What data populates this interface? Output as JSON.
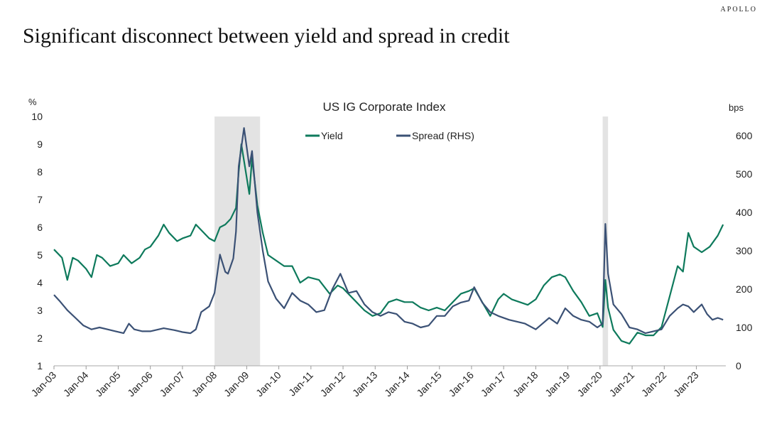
{
  "header": {
    "brand": "APOLLO",
    "headline": "Significant disconnect between yield and spread in credit"
  },
  "chart_data": {
    "type": "line",
    "title": "US IG Corporate Index",
    "left_unit": "%",
    "right_unit": "bps",
    "y_left_range": [
      1,
      10
    ],
    "y_left_ticks": [
      "1",
      "2",
      "3",
      "4",
      "5",
      "6",
      "7",
      "8",
      "9",
      "10"
    ],
    "y_right_range": [
      0,
      650
    ],
    "y_right_ticks": [
      "0",
      "100",
      "200",
      "300",
      "400",
      "500",
      "600"
    ],
    "x_range": [
      "2003-01",
      "2023-12"
    ],
    "x_ticks": [
      "Jan-03",
      "Jan-04",
      "Jan-05",
      "Jan-06",
      "Jan-07",
      "Jan-08",
      "Jan-09",
      "Jan-10",
      "Jan-11",
      "Jan-12",
      "Jan-13",
      "Jan-14",
      "Jan-15",
      "Jan-16",
      "Jan-17",
      "Jan-18",
      "Jan-19",
      "Jan-20",
      "Jan-21",
      "Jan-22",
      "Jan-23"
    ],
    "grid": false,
    "legend_position": "top-center",
    "shaded_periods": [
      [
        "2008-01",
        "2009-06"
      ],
      [
        "2020-02",
        "2020-04"
      ]
    ],
    "series": [
      {
        "name": "Yield",
        "axis": "left",
        "color": "#0e7a5c",
        "points": [
          [
            "2003-01",
            5.2
          ],
          [
            "2003-04",
            4.9
          ],
          [
            "2003-06",
            4.1
          ],
          [
            "2003-08",
            4.9
          ],
          [
            "2003-10",
            4.8
          ],
          [
            "2004-01",
            4.5
          ],
          [
            "2004-03",
            4.2
          ],
          [
            "2004-05",
            5.0
          ],
          [
            "2004-07",
            4.9
          ],
          [
            "2004-10",
            4.6
          ],
          [
            "2005-01",
            4.7
          ],
          [
            "2005-03",
            5.0
          ],
          [
            "2005-06",
            4.7
          ],
          [
            "2005-09",
            4.9
          ],
          [
            "2005-11",
            5.2
          ],
          [
            "2006-01",
            5.3
          ],
          [
            "2006-04",
            5.7
          ],
          [
            "2006-06",
            6.1
          ],
          [
            "2006-08",
            5.8
          ],
          [
            "2006-11",
            5.5
          ],
          [
            "2007-01",
            5.6
          ],
          [
            "2007-04",
            5.7
          ],
          [
            "2007-06",
            6.1
          ],
          [
            "2007-08",
            5.9
          ],
          [
            "2007-11",
            5.6
          ],
          [
            "2008-01",
            5.5
          ],
          [
            "2008-03",
            6.0
          ],
          [
            "2008-05",
            6.1
          ],
          [
            "2008-07",
            6.3
          ],
          [
            "2008-09",
            6.7
          ],
          [
            "2008-10",
            8.0
          ],
          [
            "2008-11",
            9.0
          ],
          [
            "2008-12",
            8.4
          ],
          [
            "2009-02",
            7.2
          ],
          [
            "2009-03",
            8.5
          ],
          [
            "2009-05",
            6.8
          ],
          [
            "2009-07",
            5.8
          ],
          [
            "2009-09",
            5.0
          ],
          [
            "2009-12",
            4.8
          ],
          [
            "2010-03",
            4.6
          ],
          [
            "2010-06",
            4.6
          ],
          [
            "2010-09",
            4.0
          ],
          [
            "2010-12",
            4.2
          ],
          [
            "2011-04",
            4.1
          ],
          [
            "2011-08",
            3.6
          ],
          [
            "2011-11",
            3.9
          ],
          [
            "2012-01",
            3.8
          ],
          [
            "2012-06",
            3.3
          ],
          [
            "2012-09",
            3.0
          ],
          [
            "2012-12",
            2.8
          ],
          [
            "2013-03",
            2.9
          ],
          [
            "2013-06",
            3.3
          ],
          [
            "2013-09",
            3.4
          ],
          [
            "2013-12",
            3.3
          ],
          [
            "2014-03",
            3.3
          ],
          [
            "2014-06",
            3.1
          ],
          [
            "2014-09",
            3.0
          ],
          [
            "2014-12",
            3.1
          ],
          [
            "2015-03",
            3.0
          ],
          [
            "2015-06",
            3.3
          ],
          [
            "2015-09",
            3.6
          ],
          [
            "2015-12",
            3.7
          ],
          [
            "2016-02",
            3.8
          ],
          [
            "2016-05",
            3.3
          ],
          [
            "2016-08",
            2.8
          ],
          [
            "2016-11",
            3.4
          ],
          [
            "2017-01",
            3.6
          ],
          [
            "2017-04",
            3.4
          ],
          [
            "2017-07",
            3.3
          ],
          [
            "2017-10",
            3.2
          ],
          [
            "2018-01",
            3.4
          ],
          [
            "2018-04",
            3.9
          ],
          [
            "2018-07",
            4.2
          ],
          [
            "2018-10",
            4.3
          ],
          [
            "2018-12",
            4.2
          ],
          [
            "2019-03",
            3.7
          ],
          [
            "2019-06",
            3.3
          ],
          [
            "2019-09",
            2.8
          ],
          [
            "2019-12",
            2.9
          ],
          [
            "2020-02",
            2.4
          ],
          [
            "2020-03",
            4.1
          ],
          [
            "2020-04",
            3.1
          ],
          [
            "2020-06",
            2.3
          ],
          [
            "2020-09",
            1.9
          ],
          [
            "2020-12",
            1.8
          ],
          [
            "2021-03",
            2.2
          ],
          [
            "2021-06",
            2.1
          ],
          [
            "2021-09",
            2.1
          ],
          [
            "2021-12",
            2.4
          ],
          [
            "2022-03",
            3.5
          ],
          [
            "2022-06",
            4.6
          ],
          [
            "2022-08",
            4.4
          ],
          [
            "2022-10",
            5.8
          ],
          [
            "2022-12",
            5.3
          ],
          [
            "2023-03",
            5.1
          ],
          [
            "2023-06",
            5.3
          ],
          [
            "2023-09",
            5.7
          ],
          [
            "2023-11",
            6.1
          ]
        ]
      },
      {
        "name": "Spread (RHS)",
        "axis": "right",
        "color": "#3b5175",
        "points": [
          [
            "2003-01",
            185
          ],
          [
            "2003-03",
            170
          ],
          [
            "2003-06",
            145
          ],
          [
            "2003-09",
            125
          ],
          [
            "2003-12",
            105
          ],
          [
            "2004-03",
            95
          ],
          [
            "2004-06",
            100
          ],
          [
            "2004-09",
            95
          ],
          [
            "2004-12",
            90
          ],
          [
            "2005-03",
            85
          ],
          [
            "2005-05",
            110
          ],
          [
            "2005-07",
            95
          ],
          [
            "2005-10",
            90
          ],
          [
            "2006-01",
            90
          ],
          [
            "2006-06",
            98
          ],
          [
            "2006-10",
            93
          ],
          [
            "2007-01",
            88
          ],
          [
            "2007-04",
            85
          ],
          [
            "2007-06",
            95
          ],
          [
            "2007-08",
            140
          ],
          [
            "2007-11",
            155
          ],
          [
            "2008-01",
            190
          ],
          [
            "2008-03",
            290
          ],
          [
            "2008-05",
            245
          ],
          [
            "2008-06",
            240
          ],
          [
            "2008-08",
            280
          ],
          [
            "2008-09",
            350
          ],
          [
            "2008-10",
            520
          ],
          [
            "2008-12",
            620
          ],
          [
            "2009-02",
            520
          ],
          [
            "2009-03",
            560
          ],
          [
            "2009-05",
            400
          ],
          [
            "2009-07",
            300
          ],
          [
            "2009-09",
            220
          ],
          [
            "2009-12",
            175
          ],
          [
            "2010-03",
            150
          ],
          [
            "2010-06",
            190
          ],
          [
            "2010-09",
            170
          ],
          [
            "2010-12",
            160
          ],
          [
            "2011-03",
            140
          ],
          [
            "2011-06",
            145
          ],
          [
            "2011-09",
            200
          ],
          [
            "2011-12",
            240
          ],
          [
            "2012-03",
            190
          ],
          [
            "2012-06",
            195
          ],
          [
            "2012-09",
            160
          ],
          [
            "2012-12",
            140
          ],
          [
            "2013-03",
            130
          ],
          [
            "2013-06",
            140
          ],
          [
            "2013-09",
            135
          ],
          [
            "2013-12",
            115
          ],
          [
            "2014-03",
            110
          ],
          [
            "2014-06",
            100
          ],
          [
            "2014-09",
            105
          ],
          [
            "2014-12",
            130
          ],
          [
            "2015-03",
            130
          ],
          [
            "2015-06",
            155
          ],
          [
            "2015-09",
            165
          ],
          [
            "2015-12",
            170
          ],
          [
            "2016-02",
            205
          ],
          [
            "2016-05",
            165
          ],
          [
            "2016-08",
            140
          ],
          [
            "2016-11",
            130
          ],
          [
            "2017-03",
            120
          ],
          [
            "2017-09",
            110
          ],
          [
            "2018-01",
            95
          ],
          [
            "2018-06",
            125
          ],
          [
            "2018-09",
            110
          ],
          [
            "2018-12",
            150
          ],
          [
            "2019-03",
            130
          ],
          [
            "2019-06",
            120
          ],
          [
            "2019-09",
            115
          ],
          [
            "2019-12",
            100
          ],
          [
            "2020-02",
            110
          ],
          [
            "2020-03",
            370
          ],
          [
            "2020-04",
            240
          ],
          [
            "2020-06",
            160
          ],
          [
            "2020-09",
            135
          ],
          [
            "2020-12",
            100
          ],
          [
            "2021-03",
            95
          ],
          [
            "2021-06",
            85
          ],
          [
            "2021-09",
            90
          ],
          [
            "2021-12",
            95
          ],
          [
            "2022-03",
            130
          ],
          [
            "2022-06",
            150
          ],
          [
            "2022-08",
            160
          ],
          [
            "2022-10",
            155
          ],
          [
            "2022-12",
            140
          ],
          [
            "2023-03",
            160
          ],
          [
            "2023-05",
            135
          ],
          [
            "2023-07",
            120
          ],
          [
            "2023-09",
            125
          ],
          [
            "2023-11",
            120
          ]
        ]
      }
    ]
  }
}
